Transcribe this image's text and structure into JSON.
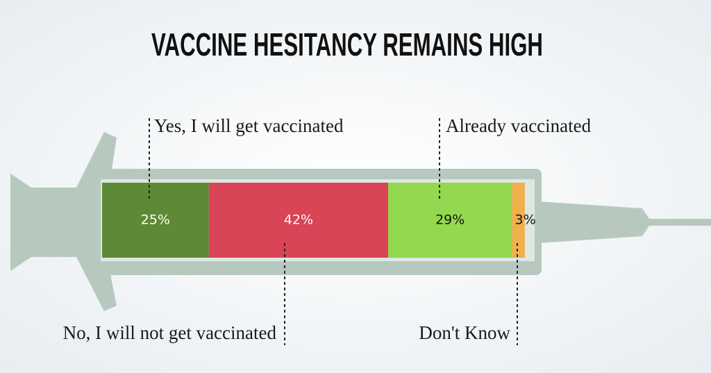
{
  "chart_data": {
    "type": "stacked-bar",
    "title": "VACCINE HESITANCY REMAINS HIGH",
    "series": [
      {
        "name": "Yes, I will get vaccinated",
        "color": "#5e8a35",
        "values": [
          25
        ],
        "value_labels": [
          "25%"
        ]
      },
      {
        "name": "No, I will not get vaccinated",
        "color": "#d94456",
        "values": [
          42
        ],
        "value_labels": [
          "42%"
        ]
      },
      {
        "name": "Already vaccinated",
        "color": "#93d94f",
        "values": [
          29
        ],
        "value_labels": [
          "29%"
        ]
      },
      {
        "name": "Don't Know",
        "color": "#f0b04c",
        "values": [
          3
        ],
        "value_labels": [
          "3%"
        ]
      }
    ]
  }
}
